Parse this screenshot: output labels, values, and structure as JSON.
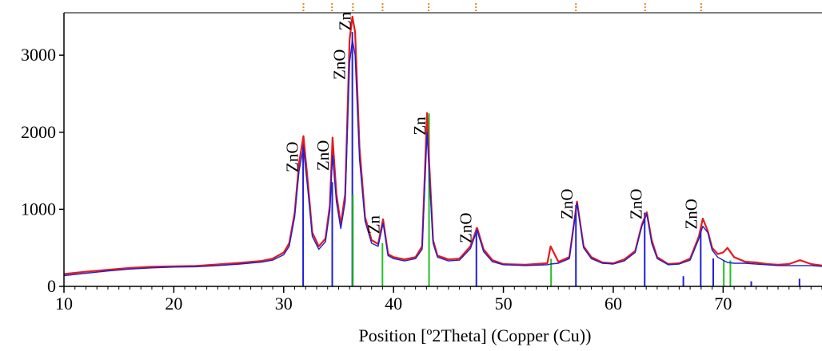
{
  "chart_data": {
    "type": "line",
    "title": "",
    "xlabel": "Position [º2Theta] (Copper (Cu))",
    "ylabel": "",
    "xlim": [
      10,
      79
    ],
    "ylim": [
      0,
      3550
    ],
    "xticks": [
      10,
      20,
      30,
      40,
      50,
      60,
      70
    ],
    "yticks": [
      0,
      1000,
      2000,
      3000
    ],
    "grid": false,
    "legend": "none",
    "colors": {
      "observed": "#e41a1c",
      "calculated": "#1f1fd6",
      "zno_reference": "#1f1fd6",
      "zn_reference": "#22c122",
      "top_markers": "#e08a1e",
      "axis": "#000000"
    },
    "series": [
      {
        "role": "observed",
        "color": "#e41a1c",
        "x": [
          10,
          12,
          14,
          16,
          18,
          20,
          22,
          24,
          26,
          28,
          29,
          30,
          30.5,
          31,
          31.4,
          31.8,
          32.2,
          32.6,
          33.2,
          33.8,
          34.2,
          34.45,
          34.8,
          35.2,
          35.6,
          36,
          36.25,
          36.5,
          36.9,
          37.4,
          38,
          38.6,
          39.05,
          39.5,
          40,
          41,
          42,
          42.6,
          43.05,
          43.25,
          43.6,
          44,
          45,
          46,
          47,
          47.6,
          48.2,
          49,
          50,
          52,
          54,
          54.3,
          55,
          56,
          56.7,
          57.3,
          58,
          59,
          60,
          61,
          62,
          62.6,
          63.05,
          63.5,
          64,
          65,
          66,
          67,
          67.8,
          68.15,
          68.6,
          69,
          69.5,
          70,
          70.4,
          71,
          72,
          73,
          74,
          75,
          76,
          77,
          78,
          79
        ],
        "y": [
          160,
          190,
          215,
          240,
          255,
          260,
          265,
          285,
          305,
          330,
          360,
          440,
          560,
          950,
          1600,
          1950,
          1350,
          700,
          520,
          620,
          1050,
          1930,
          1200,
          800,
          1200,
          3200,
          3500,
          3300,
          1800,
          900,
          600,
          550,
          870,
          420,
          380,
          350,
          380,
          520,
          2250,
          1600,
          600,
          400,
          350,
          360,
          520,
          760,
          480,
          340,
          290,
          280,
          300,
          520,
          320,
          380,
          1100,
          520,
          380,
          310,
          300,
          350,
          460,
          800,
          960,
          600,
          380,
          290,
          300,
          360,
          650,
          880,
          720,
          500,
          420,
          440,
          500,
          380,
          320,
          310,
          290,
          280,
          290,
          340,
          290,
          270
        ]
      },
      {
        "role": "calculated",
        "color": "#1f1fd6",
        "x": [
          10,
          12,
          14,
          16,
          18,
          20,
          22,
          24,
          26,
          28,
          29,
          30,
          30.5,
          31,
          31.4,
          31.8,
          32.2,
          32.6,
          33.2,
          33.8,
          34.2,
          34.45,
          34.8,
          35.2,
          35.6,
          36,
          36.25,
          36.5,
          36.9,
          37.4,
          38,
          38.6,
          39.05,
          39.5,
          40,
          41,
          42,
          42.6,
          43.05,
          43.25,
          43.6,
          44,
          45,
          46,
          47,
          47.6,
          48.2,
          49,
          50,
          52,
          54,
          54.3,
          55,
          56,
          56.7,
          57.3,
          58,
          59,
          60,
          61,
          62,
          62.6,
          63.05,
          63.5,
          64,
          65,
          66,
          67,
          67.8,
          68.15,
          68.6,
          69,
          69.5,
          70,
          70.4,
          71,
          72,
          73,
          74,
          75,
          76,
          77,
          78,
          79
        ],
        "y": [
          140,
          170,
          200,
          225,
          240,
          250,
          255,
          270,
          290,
          315,
          340,
          410,
          520,
          900,
          1500,
          1800,
          1250,
          650,
          480,
          580,
          980,
          1700,
          1100,
          750,
          1100,
          2900,
          3200,
          3000,
          1650,
          850,
          560,
          520,
          820,
          400,
          360,
          330,
          360,
          480,
          2000,
          1450,
          560,
          380,
          330,
          340,
          490,
          730,
          450,
          320,
          280,
          270,
          280,
          290,
          300,
          360,
          1080,
          500,
          360,
          300,
          290,
          330,
          440,
          780,
          940,
          560,
          360,
          280,
          290,
          340,
          620,
          780,
          700,
          470,
          380,
          340,
          310,
          300,
          300,
          290,
          280,
          270,
          270,
          270,
          270,
          260
        ]
      }
    ],
    "reference_lines": [
      {
        "phase": "ZnO",
        "color": "#1f1fd6",
        "x": 31.77,
        "y": 0.57
      },
      {
        "phase": "ZnO",
        "color": "#1f1fd6",
        "x": 34.42,
        "y": 0.41
      },
      {
        "phase": "ZnO",
        "color": "#1f1fd6",
        "x": 36.25,
        "y": 1.0
      },
      {
        "phase": "ZnO",
        "color": "#1f1fd6",
        "x": 47.54,
        "y": 0.23
      },
      {
        "phase": "ZnO",
        "color": "#1f1fd6",
        "x": 56.6,
        "y": 0.32
      },
      {
        "phase": "ZnO",
        "color": "#1f1fd6",
        "x": 62.86,
        "y": 0.29
      },
      {
        "phase": "ZnO",
        "color": "#1f1fd6",
        "x": 66.38,
        "y": 0.04
      },
      {
        "phase": "ZnO",
        "color": "#1f1fd6",
        "x": 67.96,
        "y": 0.23
      },
      {
        "phase": "ZnO",
        "color": "#1f1fd6",
        "x": 69.1,
        "y": 0.11
      },
      {
        "phase": "ZnO",
        "color": "#1f1fd6",
        "x": 72.56,
        "y": 0.02
      },
      {
        "phase": "ZnO",
        "color": "#1f1fd6",
        "x": 76.95,
        "y": 0.03
      },
      {
        "phase": "Zn",
        "color": "#22c122",
        "x": 36.3,
        "y": 0.53
      },
      {
        "phase": "Zn",
        "color": "#22c122",
        "x": 38.99,
        "y": 0.25
      },
      {
        "phase": "Zn",
        "color": "#22c122",
        "x": 43.23,
        "y": 1.0
      },
      {
        "phase": "Zn",
        "color": "#22c122",
        "x": 54.34,
        "y": 0.16
      },
      {
        "phase": "Zn",
        "color": "#22c122",
        "x": 70.06,
        "y": 0.15
      },
      {
        "phase": "Zn",
        "color": "#22c122",
        "x": 70.66,
        "y": 0.15
      }
    ],
    "top_markers": [
      31.8,
      34.4,
      36.3,
      39.0,
      43.2,
      47.5,
      56.6,
      62.9,
      68.0
    ],
    "annotations": [
      {
        "text": "ZnO",
        "x": 31.3,
        "y": 1480
      },
      {
        "text": "ZnO",
        "x": 34.1,
        "y": 1500
      },
      {
        "text": "ZnO",
        "x": 35.6,
        "y": 2680
      },
      {
        "text": "Zn",
        "x": 36.1,
        "y": 3320
      },
      {
        "text": "Zn",
        "x": 38.7,
        "y": 680
      },
      {
        "text": "ZnO",
        "x": 47.1,
        "y": 560
      },
      {
        "text": "Zn",
        "x": 42.9,
        "y": 1960
      },
      {
        "text": "ZnO",
        "x": 56.3,
        "y": 870
      },
      {
        "text": "ZnO",
        "x": 62.6,
        "y": 870
      },
      {
        "text": "ZnO",
        "x": 67.6,
        "y": 740
      }
    ]
  }
}
